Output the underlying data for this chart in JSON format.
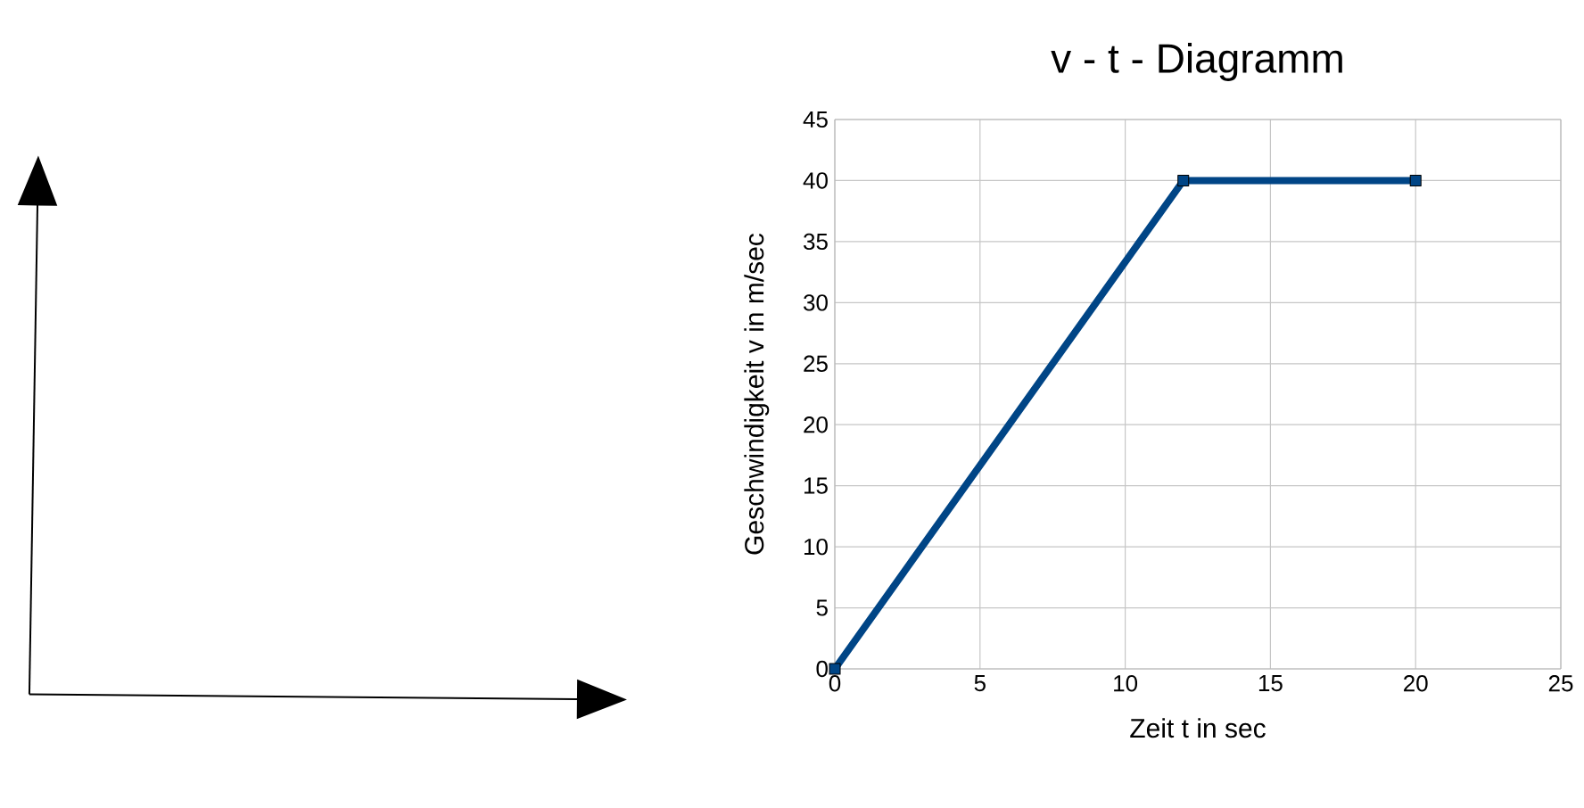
{
  "chart_data": {
    "type": "line",
    "title": "v - t - Diagramm",
    "xlabel": "Zeit t in sec",
    "ylabel": "Geschwindigkeit v in m/sec",
    "x": [
      0,
      12,
      20
    ],
    "series": [
      {
        "color": "#004586",
        "values": [
          0,
          40,
          40
        ]
      }
    ],
    "xlim": [
      0,
      25
    ],
    "ylim": [
      0,
      45
    ],
    "xticks": [
      0,
      5,
      10,
      15,
      20,
      25
    ],
    "yticks": [
      0,
      5,
      10,
      15,
      20,
      25,
      30,
      35,
      40,
      45
    ],
    "grid": true,
    "marker": "square",
    "line_style": "solid"
  }
}
